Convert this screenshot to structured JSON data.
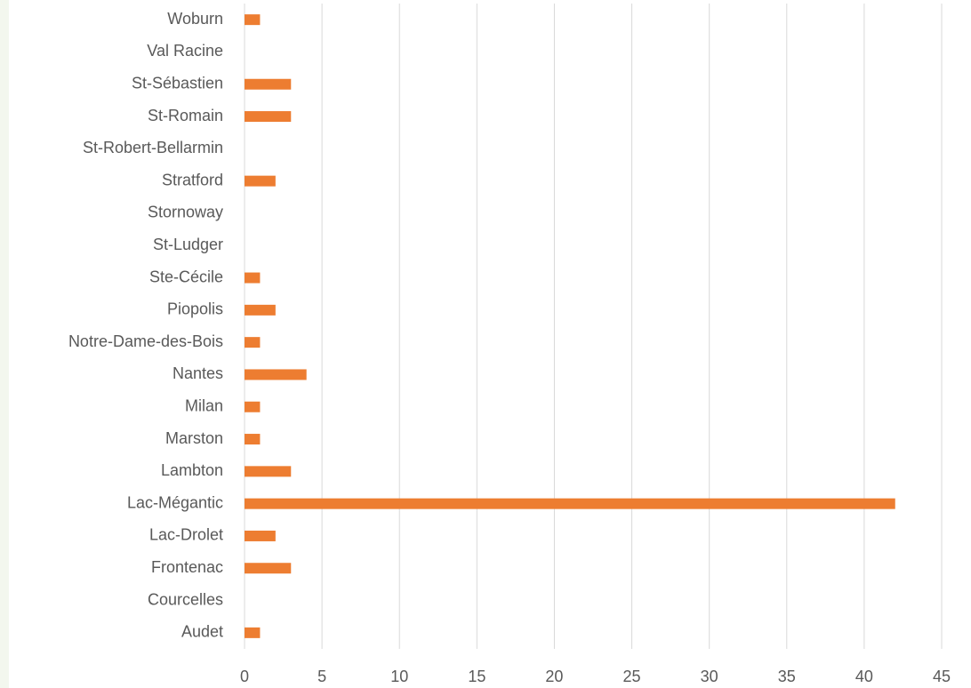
{
  "chart_data": {
    "type": "bar",
    "orientation": "horizontal",
    "categories": [
      "Woburn",
      "Val Racine",
      "St-Sébastien",
      "St-Romain",
      "St-Robert-Bellarmin",
      "Stratford",
      "Stornoway",
      "St-Ludger",
      "Ste-Cécile",
      "Piopolis",
      "Notre-Dame-des-Bois",
      "Nantes",
      "Milan",
      "Marston",
      "Lambton",
      "Lac-Mégantic",
      "Lac-Drolet",
      "Frontenac",
      "Courcelles",
      "Audet"
    ],
    "values": [
      1,
      0,
      3,
      3,
      0,
      2,
      0,
      0,
      1,
      2,
      1,
      4,
      1,
      1,
      3,
      42,
      2,
      3,
      0,
      1
    ],
    "color": "#ed7d31",
    "xlim": [
      0,
      45
    ],
    "xticks": [
      0,
      5,
      10,
      15,
      20,
      25,
      30,
      35,
      40,
      45
    ],
    "grid": true
  }
}
